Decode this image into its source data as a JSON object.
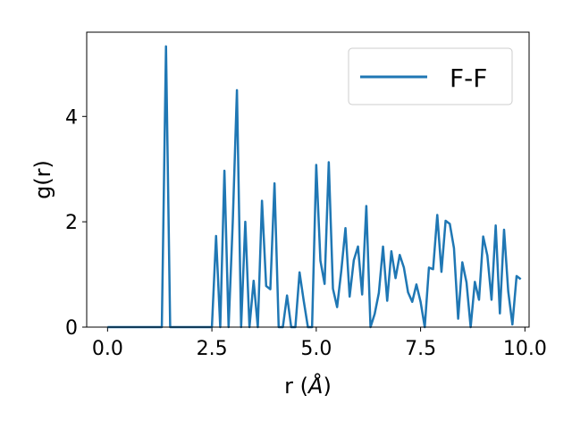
{
  "chart_data": {
    "type": "line",
    "xlabel": "r (",
    "xlabel_unit": "Å",
    "xlabel_close": ")",
    "ylabel": "g(r)",
    "xlim": [
      -0.5,
      10.1
    ],
    "ylim": [
      0,
      5.6
    ],
    "xticks": [
      0.0,
      2.5,
      5.0,
      7.5,
      10.0
    ],
    "xtick_labels": [
      "0.0",
      "2.5",
      "5.0",
      "7.5",
      "10.0"
    ],
    "yticks": [
      0,
      2,
      4
    ],
    "ytick_labels": [
      "0",
      "2",
      "4"
    ],
    "legend_position": "top-right",
    "grid": false,
    "series": [
      {
        "name": "F-F",
        "color": "#1f77b4",
        "x": [
          0.0,
          1.3,
          1.4,
          1.5,
          2.5,
          2.6,
          2.7,
          2.8,
          2.9,
          3.0,
          3.1,
          3.2,
          3.3,
          3.4,
          3.5,
          3.6,
          3.7,
          3.8,
          3.9,
          4.0,
          4.1,
          4.2,
          4.3,
          4.4,
          4.5,
          4.6,
          4.7,
          4.8,
          4.9,
          5.0,
          5.1,
          5.2,
          5.3,
          5.4,
          5.5,
          5.6,
          5.7,
          5.8,
          5.9,
          6.0,
          6.1,
          6.2,
          6.3,
          6.4,
          6.5,
          6.6,
          6.7,
          6.8,
          6.9,
          7.0,
          7.1,
          7.2,
          7.3,
          7.4,
          7.5,
          7.6,
          7.7,
          7.8,
          7.9,
          8.0,
          8.1,
          8.2,
          8.3,
          8.4,
          8.5,
          8.6,
          8.7,
          8.8,
          8.9,
          9.0,
          9.1,
          9.2,
          9.3,
          9.4,
          9.5,
          9.6,
          9.7,
          9.8,
          9.9
        ],
        "y": [
          0.0,
          0.0,
          5.33,
          0.0,
          0.0,
          1.73,
          0.0,
          2.97,
          0.0,
          2.0,
          4.5,
          0.0,
          2.0,
          0.0,
          0.88,
          0.0,
          2.4,
          0.78,
          0.72,
          2.73,
          0.0,
          0.0,
          0.6,
          0.0,
          0.0,
          1.04,
          0.5,
          0.0,
          0.0,
          3.08,
          1.26,
          0.82,
          3.13,
          0.73,
          0.38,
          1.07,
          1.88,
          0.58,
          1.27,
          1.53,
          0.62,
          2.3,
          0.0,
          0.25,
          0.65,
          1.53,
          0.5,
          1.44,
          0.93,
          1.37,
          1.13,
          0.66,
          0.48,
          0.81,
          0.48,
          0.0,
          1.13,
          1.1,
          2.13,
          1.05,
          2.02,
          1.96,
          1.5,
          0.16,
          1.23,
          0.85,
          0.0,
          0.86,
          0.52,
          1.72,
          1.36,
          0.52,
          1.93,
          0.26,
          1.85,
          0.68,
          0.05,
          0.97,
          0.91
        ]
      }
    ]
  }
}
